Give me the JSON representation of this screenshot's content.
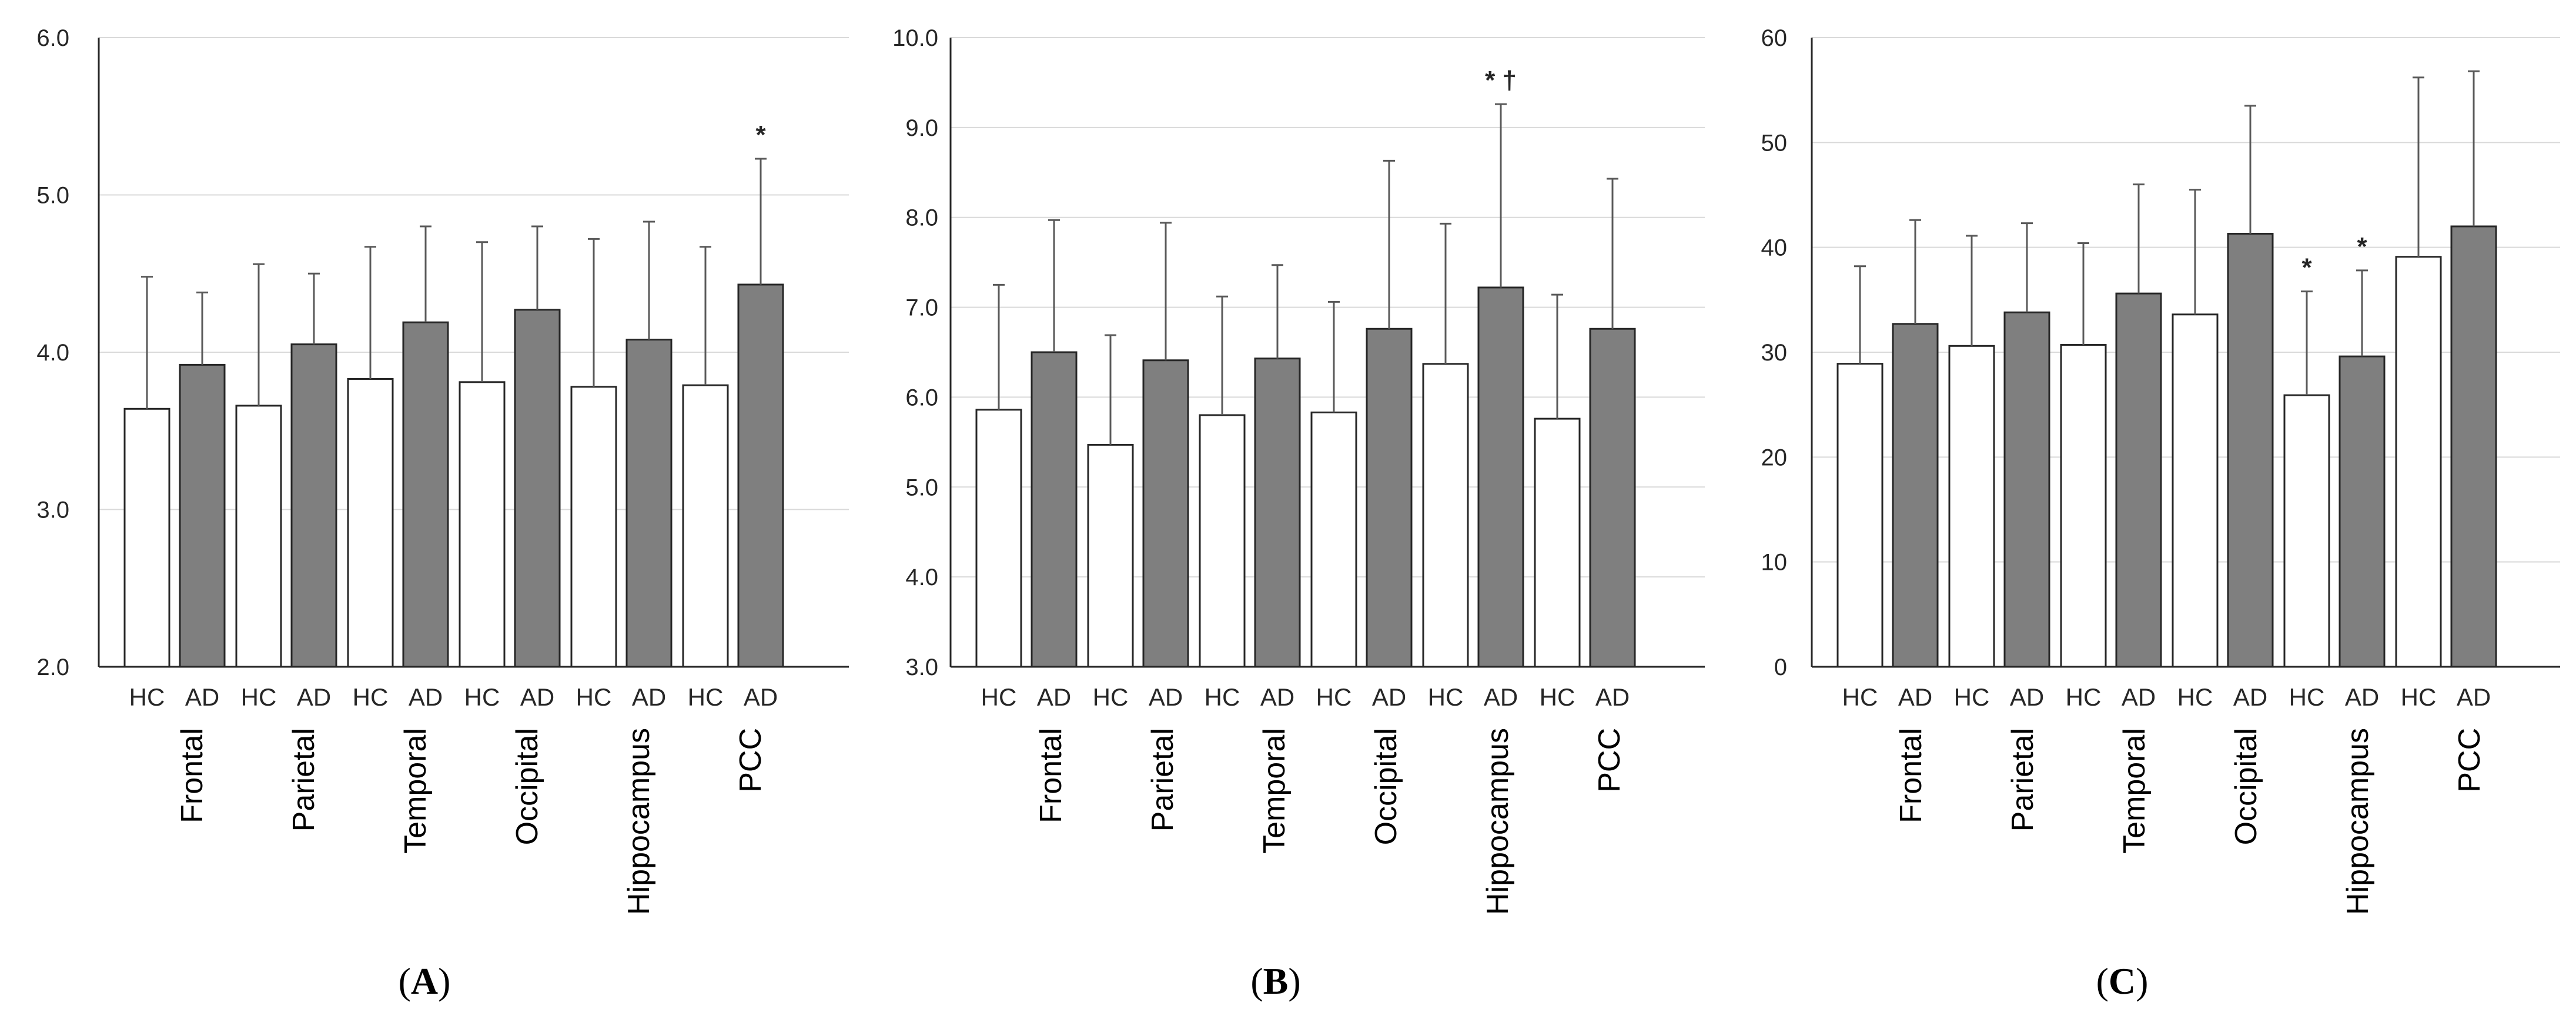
{
  "chart_data": [
    {
      "type": "bar",
      "panel_label": "A",
      "ylim": [
        2.0,
        6.0
      ],
      "yticks": [
        "2.0",
        "3.0",
        "4.0",
        "5.0",
        "6.0"
      ],
      "group_labels": [
        "HC",
        "AD"
      ],
      "categories": [
        "Frontal",
        "Parietal",
        "Temporal",
        "Occipital",
        "Hippocampus",
        "PCC"
      ],
      "series": [
        {
          "name": "HC",
          "fill": "#ffffff",
          "values": [
            3.64,
            3.66,
            3.83,
            3.81,
            3.78,
            3.79
          ],
          "errors": [
            0.84,
            0.9,
            0.84,
            0.89,
            0.94,
            0.88
          ],
          "annotations": [
            "",
            "",
            "",
            "",
            "",
            ""
          ]
        },
        {
          "name": "AD",
          "fill": "#7f7f7f",
          "values": [
            3.92,
            4.05,
            4.19,
            4.27,
            4.08,
            4.43
          ],
          "errors": [
            0.46,
            0.45,
            0.61,
            0.53,
            0.75,
            0.8
          ],
          "annotations": [
            "",
            "",
            "",
            "",
            "",
            "*"
          ]
        }
      ]
    },
    {
      "type": "bar",
      "panel_label": "B",
      "ylim": [
        3.0,
        10.0
      ],
      "yticks": [
        "3.0",
        "4.0",
        "5.0",
        "6.0",
        "7.0",
        "8.0",
        "9.0",
        "10.0"
      ],
      "group_labels": [
        "HC",
        "AD"
      ],
      "categories": [
        "Frontal",
        "Parietal",
        "Temporal",
        "Occipital",
        "Hippocampus",
        "PCC"
      ],
      "series": [
        {
          "name": "HC",
          "fill": "#ffffff",
          "values": [
            5.86,
            5.47,
            5.8,
            5.83,
            6.37,
            5.76
          ],
          "errors": [
            1.39,
            1.22,
            1.32,
            1.23,
            1.56,
            1.38
          ],
          "annotations": [
            "",
            "",
            "",
            "",
            "",
            ""
          ]
        },
        {
          "name": "AD",
          "fill": "#7f7f7f",
          "values": [
            6.5,
            6.41,
            6.43,
            6.76,
            7.22,
            6.76
          ],
          "errors": [
            1.47,
            1.53,
            1.04,
            1.87,
            2.04,
            1.67
          ],
          "annotations": [
            "",
            "",
            "",
            "",
            "* †",
            ""
          ]
        }
      ]
    },
    {
      "type": "bar",
      "panel_label": "C",
      "ylim": [
        0,
        60
      ],
      "yticks": [
        "0",
        "10",
        "20",
        "30",
        "40",
        "50",
        "60"
      ],
      "group_labels": [
        "HC",
        "AD"
      ],
      "categories": [
        "Frontal",
        "Parietal",
        "Temporal",
        "Occipital",
        "Hippocampus",
        "PCC"
      ],
      "series": [
        {
          "name": "HC",
          "fill": "#ffffff",
          "values": [
            28.9,
            30.6,
            30.7,
            33.6,
            25.9,
            39.1
          ],
          "errors": [
            9.3,
            10.5,
            9.7,
            11.9,
            9.9,
            17.1
          ],
          "annotations": [
            "",
            "",
            "",
            "",
            "*",
            ""
          ]
        },
        {
          "name": "AD",
          "fill": "#7f7f7f",
          "values": [
            32.7,
            33.8,
            35.6,
            41.3,
            29.6,
            42.0
          ],
          "errors": [
            9.9,
            8.5,
            10.4,
            12.2,
            8.2,
            14.8
          ],
          "annotations": [
            "",
            "",
            "",
            "",
            "*",
            ""
          ]
        }
      ]
    }
  ]
}
